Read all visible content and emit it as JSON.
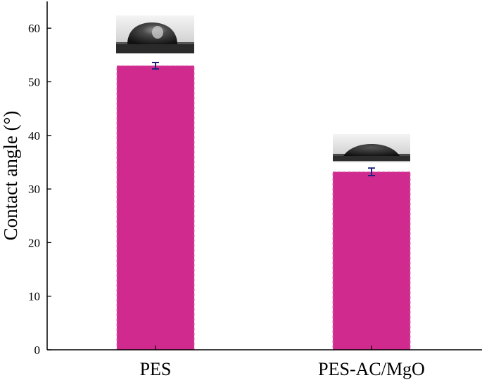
{
  "chart_data": {
    "type": "bar",
    "title": "",
    "xlabel": "",
    "ylabel": "Contact angle (°)",
    "categories": [
      "PES",
      "PES-AC/MgO"
    ],
    "values": [
      53.0,
      33.2
    ],
    "errors": [
      0.6,
      0.7
    ],
    "ylim": [
      0,
      65
    ],
    "yticks": [
      0,
      10,
      20,
      30,
      40,
      50,
      60
    ],
    "grid": false,
    "legend": "none",
    "bar_color": "#d02a8e",
    "error_color": "#1a1f7a",
    "insets": [
      "droplet-photo",
      "droplet-photo"
    ]
  }
}
